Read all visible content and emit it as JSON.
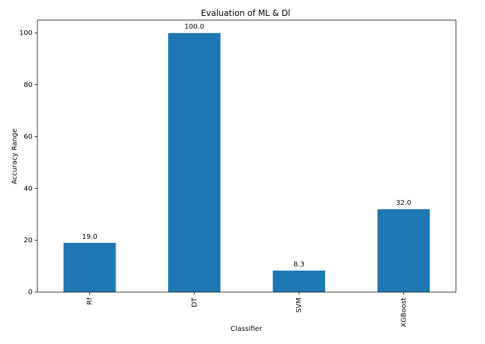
{
  "chart_data": {
    "type": "bar",
    "title": "Evaluation of ML & Dl",
    "xlabel": "Classifier",
    "ylabel": "Accuracy Range",
    "categories": [
      "Rf",
      "DT",
      "SVM",
      "XGBoost"
    ],
    "values": [
      19.0,
      100.0,
      8.3,
      32.0
    ],
    "value_labels": [
      "19.0",
      "100.0",
      "8.3",
      "32.0"
    ],
    "ylim": [
      0,
      105
    ],
    "yticks": [
      0,
      20,
      40,
      60,
      80,
      100
    ],
    "grid": false,
    "legend": "none",
    "bar_color": "#1f77b4"
  }
}
